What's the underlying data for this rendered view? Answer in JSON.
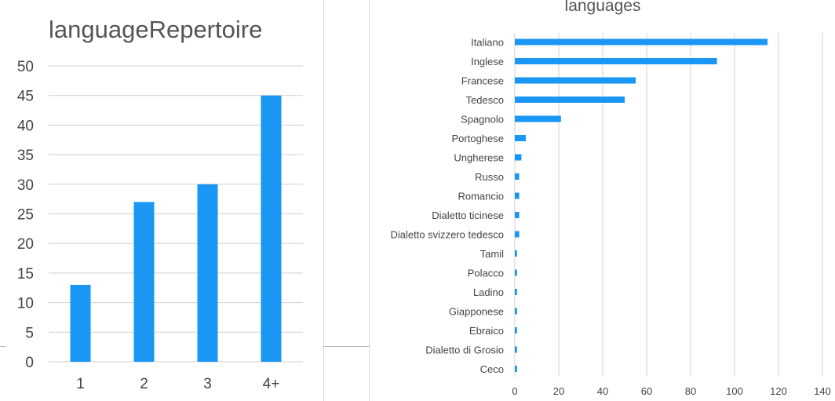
{
  "colors": {
    "bar": "#1a96f5",
    "grid": "#d0d0d0",
    "text": "#444444"
  },
  "chart_data": [
    {
      "type": "bar",
      "title": "languageRepertoire",
      "categories": [
        "1",
        "2",
        "3",
        "4+"
      ],
      "values": [
        13,
        27,
        30,
        45
      ],
      "ylim": [
        0,
        50
      ],
      "yticks": [
        "0",
        "5",
        "10",
        "15",
        "20",
        "25",
        "30",
        "35",
        "40",
        "45",
        "50"
      ],
      "grid": true
    },
    {
      "type": "bar",
      "orientation": "horizontal",
      "title": "languages",
      "categories": [
        "Italiano",
        "Inglese",
        "Francese",
        "Tedesco",
        "Spagnolo",
        "Portoghese",
        "Ungherese",
        "Russo",
        "Romancio",
        "Dialetto ticinese",
        "Dialetto svizzero tedesco",
        "Tamil",
        "Polacco",
        "Ladino",
        "Giapponese",
        "Ebraico",
        "Dialetto di Grosio",
        "Ceco"
      ],
      "values": [
        115,
        92,
        55,
        50,
        21,
        5,
        3,
        2,
        2,
        2,
        2,
        1,
        1,
        1,
        1,
        1,
        1,
        1
      ],
      "xlim": [
        0,
        140
      ],
      "xticks": [
        "0",
        "20",
        "40",
        "60",
        "80",
        "100",
        "120",
        "140"
      ],
      "grid": true
    }
  ]
}
